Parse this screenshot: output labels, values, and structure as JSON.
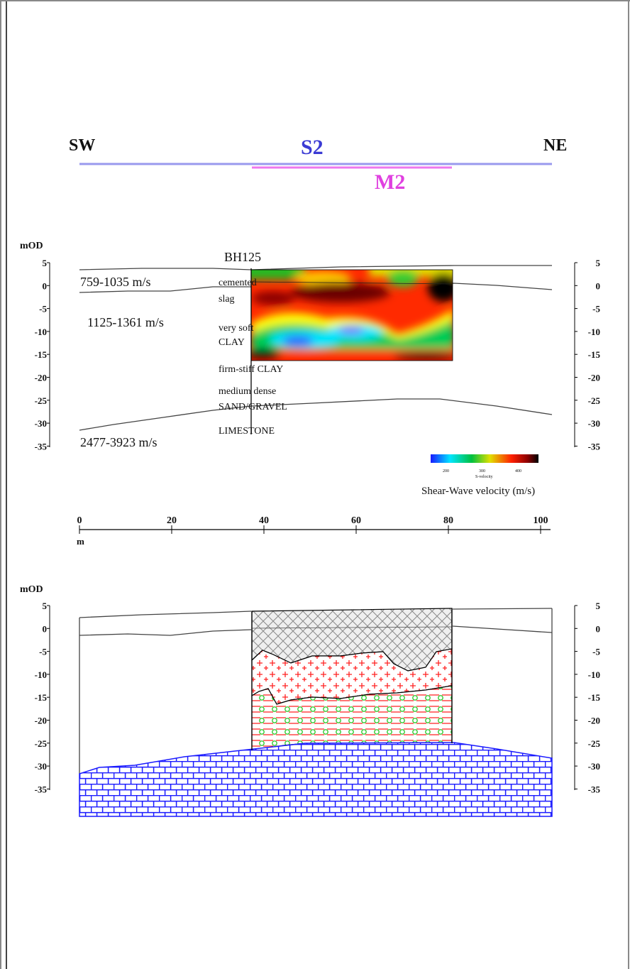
{
  "directions": {
    "left": "SW",
    "right": "NE"
  },
  "lines": {
    "s2": "S2",
    "m2": "M2",
    "s2_color": "#3b3bd4",
    "m2_color": "#e040e0",
    "s2_line_color": "#9999ee",
    "m2_line_color": "#ee77ee"
  },
  "axis_unit": "mOD",
  "y_ticks": [
    "5",
    "0",
    "-5",
    "-10",
    "-15",
    "-20",
    "-25",
    "-30",
    "-35"
  ],
  "x_ticks": [
    "0",
    "20",
    "40",
    "60",
    "80",
    "100"
  ],
  "x_unit": "m",
  "borehole": "BH125",
  "velocities": [
    "759-1035 m/s",
    "1125-1361 m/s",
    "2477-3923 m/s"
  ],
  "strata": [
    "cemented",
    "slag",
    "very soft",
    "CLAY",
    "firm-stiff CLAY",
    "medium dense",
    "SAND/GRAVEL",
    "LIMESTONE"
  ],
  "colorbar": {
    "ticks": [
      "200",
      "300",
      "400"
    ],
    "small_label": "S-velocity",
    "title": "Shear-Wave velocity (m/s)",
    "colors": [
      "#1a1aff",
      "#00e5ff",
      "#00c040",
      "#e0e000",
      "#ff2000",
      "#8b0000",
      "#000000"
    ]
  },
  "legend_colors": {
    "limestone": "#1a1aff",
    "sand_gravel": "#22bb22",
    "clay_dash": "#ff2222",
    "crosshatch": "#999999"
  }
}
